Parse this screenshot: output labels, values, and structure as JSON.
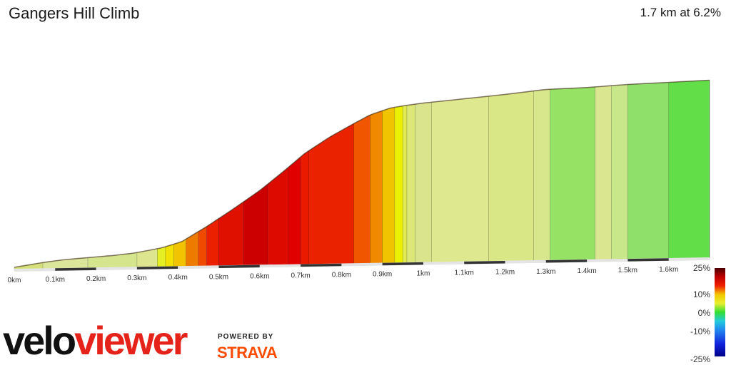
{
  "header": {
    "title": "Gangers Hill Climb",
    "summary": "1.7 km at 6.2%"
  },
  "branding": {
    "logo_part1": "velo",
    "logo_part2": "viewer",
    "powered_by": "POWERED BY",
    "strava": "STRAVA"
  },
  "chart_data": {
    "type": "area",
    "title": "Gangers Hill Climb",
    "distance_total_km": 1.7,
    "average_gradient_percent": 6.2,
    "x_ticks": [
      "0km",
      "0.1km",
      "0.2km",
      "0.3km",
      "0.4km",
      "0.5km",
      "0.6km",
      "0.7km",
      "0.8km",
      "0.9km",
      "1km",
      "1.1km",
      "1.2km",
      "1.3km",
      "1.4km",
      "1.5km",
      "1.6km"
    ],
    "xlim": [
      0,
      1.7
    ],
    "profile": [
      {
        "km": 0.0,
        "elev": 0
      },
      {
        "km": 0.07,
        "elev": 1.8
      },
      {
        "km": 0.12,
        "elev": 2.8
      },
      {
        "km": 0.18,
        "elev": 3.5
      },
      {
        "km": 0.24,
        "elev": 4.2
      },
      {
        "km": 0.29,
        "elev": 5.0
      },
      {
        "km": 0.36,
        "elev": 7.0
      },
      {
        "km": 0.41,
        "elev": 9.5
      },
      {
        "km": 0.47,
        "elev": 15.5
      },
      {
        "km": 0.53,
        "elev": 22.0
      },
      {
        "km": 0.6,
        "elev": 30.0
      },
      {
        "km": 0.66,
        "elev": 38.0
      },
      {
        "km": 0.71,
        "elev": 45.0
      },
      {
        "km": 0.77,
        "elev": 51.5
      },
      {
        "km": 0.83,
        "elev": 57.0
      },
      {
        "km": 0.87,
        "elev": 60.5
      },
      {
        "km": 0.92,
        "elev": 63.2
      },
      {
        "km": 0.96,
        "elev": 64.2
      },
      {
        "km": 1.0,
        "elev": 65.0
      },
      {
        "km": 1.1,
        "elev": 66.5
      },
      {
        "km": 1.2,
        "elev": 68.0
      },
      {
        "km": 1.3,
        "elev": 69.8
      },
      {
        "km": 1.4,
        "elev": 70.3
      },
      {
        "km": 1.5,
        "elev": 71.3
      },
      {
        "km": 1.6,
        "elev": 71.9
      },
      {
        "km": 1.7,
        "elev": 72.5
      }
    ],
    "segments": [
      {
        "from": 0.0,
        "to": 0.07,
        "color": "#d5e07a"
      },
      {
        "from": 0.07,
        "to": 0.18,
        "color": "#dbe69a"
      },
      {
        "from": 0.18,
        "to": 0.3,
        "color": "#d4e58e"
      },
      {
        "from": 0.3,
        "to": 0.35,
        "color": "#dde68e"
      },
      {
        "from": 0.35,
        "to": 0.37,
        "color": "#e5ee22"
      },
      {
        "from": 0.37,
        "to": 0.39,
        "color": "#f1e000"
      },
      {
        "from": 0.39,
        "to": 0.42,
        "color": "#f2c300"
      },
      {
        "from": 0.42,
        "to": 0.45,
        "color": "#ee7a00"
      },
      {
        "from": 0.45,
        "to": 0.47,
        "color": "#f04a00"
      },
      {
        "from": 0.47,
        "to": 0.5,
        "color": "#ea2000"
      },
      {
        "from": 0.5,
        "to": 0.56,
        "color": "#e01000"
      },
      {
        "from": 0.56,
        "to": 0.62,
        "color": "#cc0000"
      },
      {
        "from": 0.62,
        "to": 0.67,
        "color": "#dd0a00"
      },
      {
        "from": 0.67,
        "to": 0.7,
        "color": "#e00000"
      },
      {
        "from": 0.7,
        "to": 0.72,
        "color": "#e91a00"
      },
      {
        "from": 0.72,
        "to": 0.83,
        "color": "#ea2200"
      },
      {
        "from": 0.83,
        "to": 0.87,
        "color": "#f05600"
      },
      {
        "from": 0.87,
        "to": 0.9,
        "color": "#f08800"
      },
      {
        "from": 0.9,
        "to": 0.93,
        "color": "#f1c400"
      },
      {
        "from": 0.93,
        "to": 0.95,
        "color": "#eaf000"
      },
      {
        "from": 0.95,
        "to": 0.96,
        "color": "#e1ec50"
      },
      {
        "from": 0.96,
        "to": 0.98,
        "color": "#dde778"
      },
      {
        "from": 0.98,
        "to": 1.02,
        "color": "#d9e48c"
      },
      {
        "from": 1.02,
        "to": 1.16,
        "color": "#dde88f"
      },
      {
        "from": 1.16,
        "to": 1.27,
        "color": "#dae787"
      },
      {
        "from": 1.27,
        "to": 1.31,
        "color": "#d8e78c"
      },
      {
        "from": 1.31,
        "to": 1.42,
        "color": "#95e265"
      },
      {
        "from": 1.42,
        "to": 1.46,
        "color": "#dbe690"
      },
      {
        "from": 1.46,
        "to": 1.5,
        "color": "#c8e68a"
      },
      {
        "from": 1.5,
        "to": 1.6,
        "color": "#8fe06a"
      },
      {
        "from": 1.6,
        "to": 1.7,
        "color": "#62df48"
      }
    ],
    "gradient_legend": {
      "labels": [
        "25%",
        "10%",
        "0%",
        "-10%",
        "-25%"
      ],
      "values": [
        25,
        10,
        0,
        -10,
        -25
      ],
      "stops": [
        {
          "value": 25,
          "color": "#4a0000"
        },
        {
          "value": 20,
          "color": "#c00000"
        },
        {
          "value": 15,
          "color": "#f02000"
        },
        {
          "value": 10,
          "color": "#f2c800"
        },
        {
          "value": 5,
          "color": "#e8ef30"
        },
        {
          "value": 0,
          "color": "#33dd33"
        },
        {
          "value": -5,
          "color": "#22ccdd"
        },
        {
          "value": -10,
          "color": "#2288ee"
        },
        {
          "value": -18,
          "color": "#1122dd"
        },
        {
          "value": -25,
          "color": "#000088"
        }
      ]
    }
  }
}
